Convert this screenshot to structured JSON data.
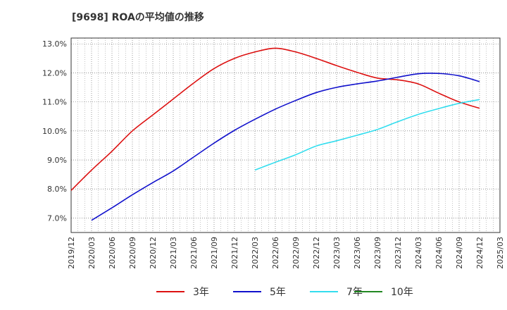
{
  "chart_data": {
    "type": "line",
    "title": "[9698]  ROAの平均値の推移",
    "xlabel": "",
    "ylabel": "",
    "x_ticks": [
      "2019/12",
      "2020/03",
      "2020/06",
      "2020/09",
      "2020/12",
      "2021/03",
      "2021/06",
      "2021/09",
      "2021/12",
      "2022/03",
      "2022/06",
      "2022/09",
      "2022/12",
      "2023/03",
      "2023/06",
      "2023/09",
      "2023/12",
      "2024/03",
      "2024/06",
      "2024/09",
      "2024/12",
      "2025/03"
    ],
    "y_ticks": [
      "7.0%",
      "8.0%",
      "9.0%",
      "10.0%",
      "11.0%",
      "12.0%",
      "13.0%"
    ],
    "ylim": [
      6.5,
      13.2
    ],
    "y_unit": "%",
    "grid": true,
    "legend_position": "bottom",
    "series": [
      {
        "name": "3年",
        "color": "#dd1111",
        "x": [
          "2019/12",
          "2020/03",
          "2020/06",
          "2020/09",
          "2020/12",
          "2021/03",
          "2021/06",
          "2021/09",
          "2021/12",
          "2022/03",
          "2022/06",
          "2022/09",
          "2022/12",
          "2023/03",
          "2023/06",
          "2023/09",
          "2023/12",
          "2024/03",
          "2024/06",
          "2024/09",
          "2024/12"
        ],
        "values": [
          7.95,
          8.65,
          9.3,
          10.0,
          10.55,
          11.1,
          11.65,
          12.15,
          12.5,
          12.72,
          12.85,
          12.72,
          12.5,
          12.25,
          12.02,
          11.82,
          11.76,
          11.62,
          11.3,
          11.0,
          10.78
        ]
      },
      {
        "name": "5年",
        "color": "#1111cc",
        "x": [
          "2020/03",
          "2020/06",
          "2020/09",
          "2020/12",
          "2021/03",
          "2021/06",
          "2021/09",
          "2021/12",
          "2022/03",
          "2022/06",
          "2022/09",
          "2022/12",
          "2023/03",
          "2023/06",
          "2023/09",
          "2023/12",
          "2024/03",
          "2024/06",
          "2024/09",
          "2024/12"
        ],
        "values": [
          6.92,
          7.35,
          7.8,
          8.22,
          8.62,
          9.1,
          9.58,
          10.02,
          10.4,
          10.75,
          11.05,
          11.32,
          11.5,
          11.62,
          11.72,
          11.85,
          11.97,
          11.98,
          11.9,
          11.7
        ]
      },
      {
        "name": "7年",
        "color": "#33ddee",
        "x": [
          "2022/03",
          "2022/06",
          "2022/09",
          "2022/12",
          "2023/03",
          "2023/06",
          "2023/09",
          "2023/12",
          "2024/03",
          "2024/06",
          "2024/09",
          "2024/12"
        ],
        "values": [
          8.65,
          8.92,
          9.18,
          9.48,
          9.66,
          9.85,
          10.05,
          10.32,
          10.57,
          10.77,
          10.95,
          11.08
        ]
      },
      {
        "name": "10年",
        "color": "#228822",
        "x": [],
        "values": []
      }
    ]
  }
}
